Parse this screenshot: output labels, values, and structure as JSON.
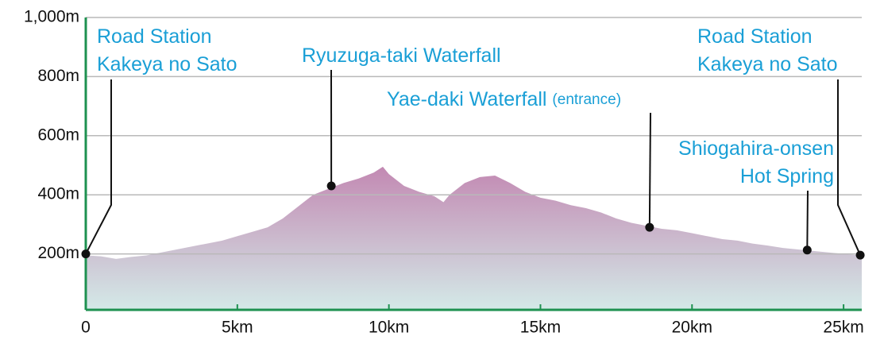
{
  "chart_data": {
    "type": "area",
    "x": [
      0,
      0.5,
      1,
      1.5,
      2,
      2.5,
      3,
      3.5,
      4,
      4.5,
      5,
      5.5,
      6,
      6.5,
      7,
      7.5,
      8,
      8.5,
      9,
      9.5,
      9.8,
      10,
      10.5,
      11,
      11.5,
      11.8,
      12,
      12.5,
      13,
      13.5,
      14,
      14.5,
      15,
      15.5,
      16,
      16.5,
      17,
      17.5,
      18,
      18.5,
      19,
      19.5,
      20,
      20.5,
      21,
      21.5,
      22,
      22.5,
      23,
      23.5,
      24,
      24.5,
      25,
      25.6
    ],
    "values": [
      195,
      192,
      183,
      190,
      195,
      205,
      215,
      225,
      235,
      245,
      260,
      275,
      290,
      320,
      360,
      400,
      420,
      440,
      455,
      475,
      495,
      470,
      430,
      410,
      395,
      375,
      400,
      440,
      460,
      465,
      440,
      410,
      390,
      380,
      365,
      355,
      340,
      320,
      305,
      295,
      285,
      280,
      270,
      260,
      250,
      245,
      235,
      228,
      220,
      215,
      210,
      205,
      200,
      195
    ],
    "xlim": [
      0,
      25.6
    ],
    "ylim": [
      0,
      1000
    ],
    "xticks": [
      0,
      {
        "value": 5,
        "label": "5km"
      },
      {
        "value": 10,
        "label": "10km"
      },
      {
        "value": 15,
        "label": "15km"
      },
      {
        "value": 20,
        "label": "20km"
      },
      {
        "value": 25,
        "label": "25km"
      }
    ],
    "yticks": [
      {
        "value": 200,
        "label": "200m"
      },
      {
        "value": 400,
        "label": "400m"
      },
      {
        "value": 600,
        "label": "600m"
      },
      {
        "value": 800,
        "label": "800m"
      },
      {
        "value": 1000,
        "label": "1,000m"
      }
    ],
    "grid": true,
    "colors": {
      "axis": "#1e9150",
      "fill_top": "#c286b1",
      "fill_bottom": "#d4ece9",
      "label": "#1a9fd6",
      "marker": "#111111",
      "grid": "#b9b9b9"
    },
    "points": [
      {
        "label": [
          "Road Station",
          "Kakeya no Sato"
        ],
        "x": 0,
        "y": 200
      },
      {
        "label": [
          "Ryuzuga-taki Waterfall"
        ],
        "x": 8.1,
        "y": 430
      },
      {
        "label": [
          "Yae-daki Waterfall"
        ],
        "note": "(entrance)",
        "x": 18.6,
        "y": 290
      },
      {
        "label": [
          "Shiogahira-onsen",
          "Hot Spring"
        ],
        "x": 23.8,
        "y": 213
      },
      {
        "label": [
          "Road Station",
          "Kakeya no Sato"
        ],
        "x": 25.55,
        "y": 196
      }
    ]
  }
}
